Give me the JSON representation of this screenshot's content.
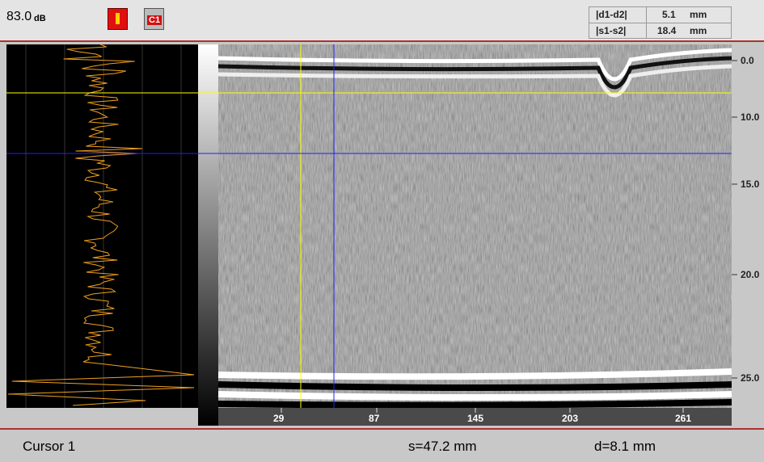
{
  "header": {
    "gain": "83.0",
    "gain_unit": "dB",
    "icon_label": "C1",
    "measurements": [
      {
        "label": "|d1-d2|",
        "value": "5.1",
        "unit": "mm"
      },
      {
        "label": "|s1-s2|",
        "value": "18.4",
        "unit": "mm"
      }
    ]
  },
  "scan": {
    "depth_labels": [
      "0.0",
      "10.0",
      "15.0",
      "20.0",
      "25.0"
    ],
    "position_labels": [
      "29",
      "87",
      "145",
      "203",
      "261"
    ]
  },
  "footer": {
    "cursor": "Cursor 1",
    "s": "s=47.2 mm",
    "d": "d=8.1 mm"
  }
}
